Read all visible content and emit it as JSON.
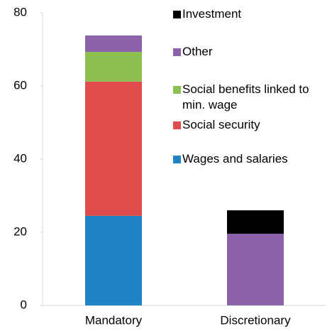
{
  "chart_data": {
    "type": "stacked-bar",
    "categories": [
      "Mandatory",
      "Discretionary"
    ],
    "series": [
      {
        "name": "Wages and salaries",
        "color": "#1f83c6",
        "values": [
          24.5,
          null
        ]
      },
      {
        "name": "Social security",
        "color": "#e04b4b",
        "values": [
          36.7,
          null
        ]
      },
      {
        "name": "Social benefits linked to min. wage",
        "color": "#8cc152",
        "values": [
          8.1,
          null
        ]
      },
      {
        "name": "Other",
        "color": "#8c63aa",
        "values": [
          4.5,
          19.6
        ]
      },
      {
        "name": "Investment",
        "color": "#000000",
        "values": [
          null,
          6.4
        ]
      }
    ],
    "ylim": [
      0,
      80
    ],
    "yticks": [
      0,
      20,
      40,
      60,
      80
    ]
  }
}
